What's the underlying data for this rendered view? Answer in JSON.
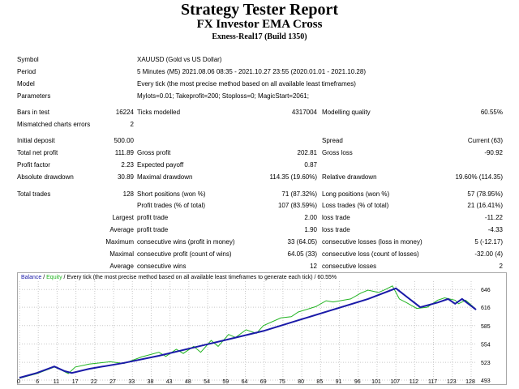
{
  "header": {
    "title": "Strategy Tester Report",
    "subtitle": "FX Investor EMA Cross",
    "server": "Exness-Real17 (Build 1350)"
  },
  "info": {
    "symbol_label": "Symbol",
    "symbol_value": "XAUUSD (Gold vs US Dollar)",
    "period_label": "Period",
    "period_value": "5 Minutes (M5) 2021.08.06 08:35 - 2021.10.27 23:55 (2020.01.01 - 2021.10.28)",
    "model_label": "Model",
    "model_value": "Every tick (the most precise method based on all available least timeframes)",
    "params_label": "Parameters",
    "params_value": "Mylots=0.01; Takeprofit=200; Stoploss=0; MagicStart=2061;"
  },
  "stats": {
    "bars_label": "Bars in test",
    "bars_value": "16224",
    "ticks_label": "Ticks modelled",
    "ticks_value": "4317004",
    "quality_label": "Modelling quality",
    "quality_value": "60.55%",
    "mismatch_label": "Mismatched charts errors",
    "mismatch_value": "2",
    "deposit_label": "Initial deposit",
    "deposit_value": "500.00",
    "spread_label": "Spread",
    "spread_value": "Current (63)",
    "netprofit_label": "Total net profit",
    "netprofit_value": "111.89",
    "grossprofit_label": "Gross profit",
    "grossprofit_value": "202.81",
    "grossloss_label": "Gross loss",
    "grossloss_value": "-90.92",
    "pf_label": "Profit factor",
    "pf_value": "2.23",
    "payoff_label": "Expected payoff",
    "payoff_value": "0.87",
    "absdd_label": "Absolute drawdown",
    "absdd_value": "30.89",
    "maxdd_label": "Maximal drawdown",
    "maxdd_value": "114.35 (19.60%)",
    "reldd_label": "Relative drawdown",
    "reldd_value": "19.60% (114.35)",
    "trades_label": "Total trades",
    "trades_value": "128",
    "short_label": "Short positions (won %)",
    "short_value": "71 (87.32%)",
    "long_label": "Long positions (won %)",
    "long_value": "57 (78.95%)",
    "pt_label": "Profit trades (% of total)",
    "pt_value": "107 (83.59%)",
    "lt_label": "Loss trades (% of total)",
    "lt_value": "21 (16.41%)",
    "largest_label": "Largest",
    "lpt_label": "profit trade",
    "lpt_value": "2.00",
    "llt_label": "loss trade",
    "llt_value": "-11.22",
    "average_label": "Average",
    "apt_label": "profit trade",
    "apt_value": "1.90",
    "alt_label": "loss trade",
    "alt_value": "-4.33",
    "maximum_label": "Maximum",
    "mcw_label": "consecutive wins (profit in money)",
    "mcw_value": "33 (64.05)",
    "mcl_label": "consecutive losses (loss in money)",
    "mcl_value": "5 (-12.17)",
    "maximal_label": "Maximal",
    "mcp_label": "consecutive profit (count of wins)",
    "mcp_value": "64.05 (33)",
    "mcls_label": "consecutive loss (count of losses)",
    "mcls_value": "-32.00 (4)",
    "average2_label": "Average",
    "acw_label": "consecutive wins",
    "acw_value": "12",
    "acl_label": "consecutive losses",
    "acl_value": "2"
  },
  "chart_header": {
    "balance": "Balance",
    "sep1": " / ",
    "equity": "Equity",
    "rest": " / Every tick (the most precise method based on all available least timeframes to generate each tick) / 60.55%"
  },
  "colors": {
    "balance": "#1a1aa8",
    "equity": "#22b422",
    "grid": "#c8c8c8"
  },
  "chart_data": {
    "type": "line",
    "title": "",
    "x_ticks": [
      "0",
      "6",
      "11",
      "17",
      "22",
      "27",
      "33",
      "38",
      "43",
      "48",
      "54",
      "59",
      "64",
      "69",
      "75",
      "80",
      "85",
      "91",
      "96",
      "101",
      "107",
      "112",
      "117",
      "123",
      "128"
    ],
    "y_ticks": [
      493,
      523,
      554,
      585,
      616,
      646
    ],
    "ylim": [
      493,
      660
    ],
    "xlim": [
      0,
      131
    ],
    "series": [
      {
        "name": "Balance",
        "points": [
          [
            0,
            497
          ],
          [
            5,
            505
          ],
          [
            10,
            516
          ],
          [
            13,
            508
          ],
          [
            15,
            505
          ],
          [
            20,
            512
          ],
          [
            30,
            522
          ],
          [
            40,
            534
          ],
          [
            50,
            548
          ],
          [
            60,
            562
          ],
          [
            70,
            576
          ],
          [
            80,
            594
          ],
          [
            90,
            612
          ],
          [
            100,
            630
          ],
          [
            108,
            648
          ],
          [
            115,
            616
          ],
          [
            120,
            624
          ],
          [
            123,
            630
          ],
          [
            125,
            622
          ],
          [
            127,
            630
          ],
          [
            131,
            612
          ]
        ]
      },
      {
        "name": "Equity",
        "points": [
          [
            0,
            496
          ],
          [
            5,
            504
          ],
          [
            10,
            515
          ],
          [
            12,
            510
          ],
          [
            14,
            504
          ],
          [
            16,
            515
          ],
          [
            20,
            520
          ],
          [
            26,
            524
          ],
          [
            30,
            521
          ],
          [
            35,
            532
          ],
          [
            40,
            540
          ],
          [
            42,
            533
          ],
          [
            45,
            545
          ],
          [
            47,
            538
          ],
          [
            50,
            550
          ],
          [
            52,
            540
          ],
          [
            55,
            560
          ],
          [
            57,
            550
          ],
          [
            60,
            570
          ],
          [
            62,
            565
          ],
          [
            65,
            578
          ],
          [
            68,
            572
          ],
          [
            70,
            585
          ],
          [
            75,
            598
          ],
          [
            78,
            600
          ],
          [
            80,
            608
          ],
          [
            85,
            617
          ],
          [
            88,
            627
          ],
          [
            90,
            625
          ],
          [
            95,
            630
          ],
          [
            98,
            640
          ],
          [
            100,
            645
          ],
          [
            103,
            641
          ],
          [
            105,
            646
          ],
          [
            107,
            652
          ],
          [
            109,
            630
          ],
          [
            111,
            624
          ],
          [
            114,
            614
          ],
          [
            117,
            616
          ],
          [
            120,
            628
          ],
          [
            122,
            632
          ],
          [
            125,
            628
          ],
          [
            126,
            622
          ],
          [
            128,
            628
          ],
          [
            130,
            618
          ],
          [
            131,
            612
          ]
        ]
      }
    ]
  }
}
